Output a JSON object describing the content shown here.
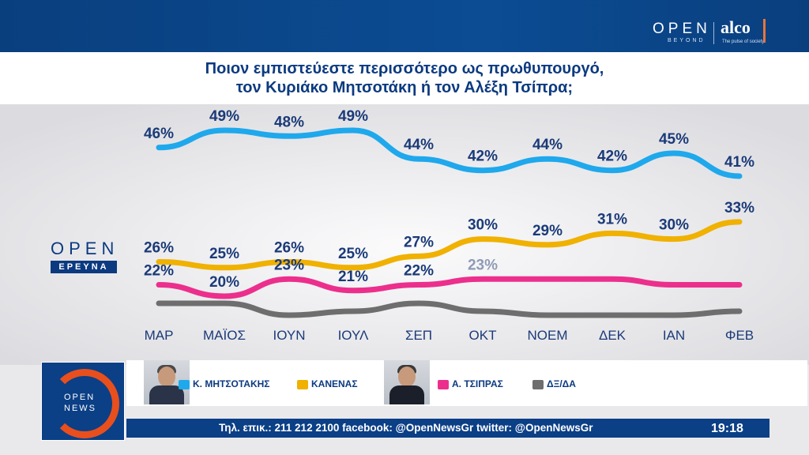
{
  "brand": {
    "open": "OPEN",
    "beyond": "BEYOND",
    "alco": "alco",
    "alco_tagline": "The pulse of society"
  },
  "title": {
    "line1": "Ποιον εμπιστεύεστε περισσότερο ως πρωθυπουργό,",
    "line2": "τον Κυριάκο Μητσοτάκη ή τον Αλέξη Τσίπρα;"
  },
  "source_logo": {
    "open": "OPEN",
    "ereyna": "ΕΡΕΥΝΑ"
  },
  "chart_data": {
    "type": "line",
    "title": "Ποιον εμπιστεύεστε περισσότερο ως πρωθυπουργό, τον Κυριάκο Μητσοτάκη ή τον Αλέξη Τσίπρα;",
    "categories": [
      "ΜΑΡ",
      "ΜΑΪΟΣ",
      "ΙΟΥΝ",
      "ΙΟΥΛ",
      "ΣΕΠ",
      "ΟΚΤ",
      "ΝΟΕΜ",
      "ΔΕΚ",
      "ΙΑΝ",
      "ΦΕΒ"
    ],
    "series": [
      {
        "name": "Κ. ΜΗΤΣΟΤΑΚΗΣ",
        "color": "#1fa8ec",
        "values": [
          46,
          49,
          48,
          49,
          44,
          42,
          44,
          42,
          45,
          41
        ],
        "labels": [
          "46%",
          "49%",
          "48%",
          "49%",
          "44%",
          "42%",
          "44%",
          "42%",
          "45%",
          "41%"
        ]
      },
      {
        "name": "ΚΑΝΕΝΑΣ",
        "color": "#f0b100",
        "values": [
          26,
          25,
          26,
          25,
          27,
          30,
          29,
          31,
          30,
          33
        ],
        "labels": [
          "26%",
          "25%",
          "26%",
          "25%",
          "27%",
          "30%",
          "29%",
          "31%",
          "30%",
          "33%"
        ]
      },
      {
        "name": "Α. ΤΣΙΠΡΑΣ",
        "color": "#ec2f8c",
        "values": [
          22,
          20,
          23,
          21,
          22,
          23,
          23,
          23,
          22,
          22
        ],
        "labels": [
          "22%",
          "20%",
          "23%",
          "21%",
          "22%",
          "23%",
          "",
          "",
          "",
          ""
        ]
      },
      {
        "name": "ΔΞ/ΔΑ",
        "color": "#6e6e6e",
        "values": [
          6,
          6,
          3,
          4,
          6,
          4,
          3,
          3,
          3,
          4
        ],
        "labels": [
          "",
          "",
          "",
          "",
          "",
          "",
          "",
          "",
          "",
          ""
        ]
      }
    ],
    "grid": false,
    "legend": "bottom"
  },
  "ticker": {
    "text": "Τηλ. επικ.: 211 212 2100 facebook: @OpenNewsGr twitter: @OpenNewsGr",
    "time": "19:18"
  },
  "channel_logo": {
    "open": "OPEN",
    "news": "NEWS"
  }
}
